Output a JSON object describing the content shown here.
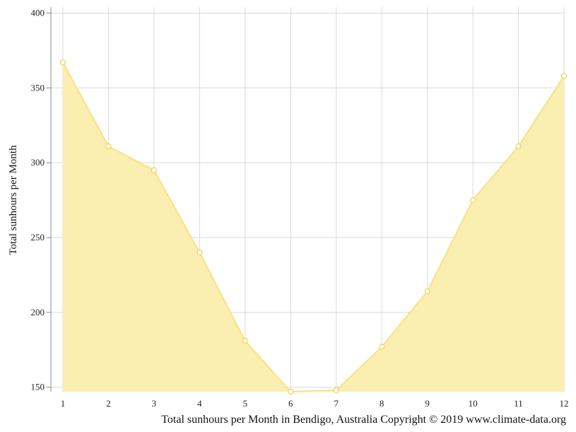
{
  "caption": "Total sunhours per Month in Bendigo, Australia Copyright © 2019 www.climate-data.org",
  "chart_data": {
    "type": "area",
    "x": [
      1,
      2,
      3,
      4,
      5,
      6,
      7,
      8,
      9,
      10,
      11,
      12
    ],
    "categories": [
      "1",
      "2",
      "3",
      "4",
      "5",
      "6",
      "7",
      "8",
      "9",
      "10",
      "11",
      "12"
    ],
    "series": [
      {
        "values": [
          367,
          311,
          295,
          240,
          181,
          147,
          148,
          177,
          214,
          275,
          311,
          358
        ]
      }
    ],
    "ylabel": "Total sunhours per Month",
    "xlabel": "",
    "ylim": [
      147,
      404
    ],
    "yticks": [
      150,
      200,
      250,
      300,
      350,
      400
    ],
    "grid": true,
    "colors": {
      "fill": "#faeeb0",
      "line": "#f8e286",
      "marker_stroke": "#efd14e",
      "marker_fill": "#ffffff",
      "grid": "#d9d9d9",
      "axis": "#888888"
    }
  }
}
